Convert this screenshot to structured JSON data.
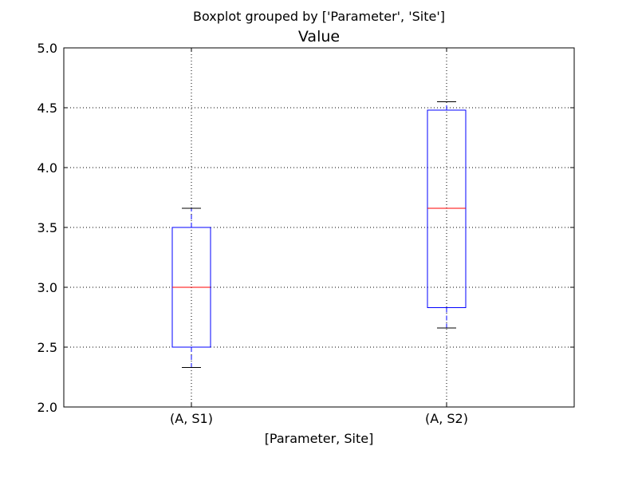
{
  "chart_data": {
    "type": "boxplot",
    "suptitle": "Boxplot grouped by ['Parameter', 'Site']",
    "title": "Value",
    "xlabel": "[Parameter, Site]",
    "ylabel": "",
    "categories": [
      "(A, S1)",
      "(A, S2)"
    ],
    "ylim": [
      2.0,
      5.0
    ],
    "yticks": [
      "2.0",
      "2.5",
      "3.0",
      "3.5",
      "4.0",
      "4.5",
      "5.0"
    ],
    "ytick_values": [
      2.0,
      2.5,
      3.0,
      3.5,
      4.0,
      4.5,
      5.0
    ],
    "grid": true,
    "boxes": [
      {
        "category": "(A, S1)",
        "whisker_low": 2.33,
        "q1": 2.5,
        "median": 3.0,
        "q3": 3.5,
        "whisker_high": 3.66
      },
      {
        "category": "(A, S2)",
        "whisker_low": 2.66,
        "q1": 2.83,
        "median": 3.66,
        "q3": 4.48,
        "whisker_high": 4.55
      }
    ],
    "colors": {
      "box": "#0000ff",
      "median": "#ff0000",
      "whisker": "#0000ff",
      "cap": "#000000",
      "grid": "#000000",
      "axes": "#000000"
    }
  }
}
